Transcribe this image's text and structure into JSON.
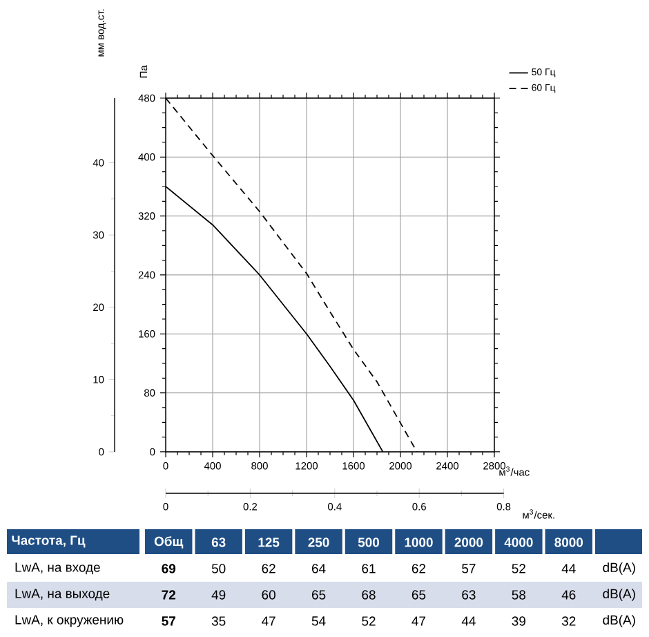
{
  "chart_data": [
    {
      "type": "line",
      "xlabel": "м$^{3}$/час",
      "ylabel": "Па",
      "y2label": "мм вод.ст.",
      "x2label": "м$^{3}$/сек.",
      "series": [
        {
          "name": "50 Гц",
          "color": "#000000",
          "line_style": "solid",
          "x": [
            0,
            400,
            800,
            1200,
            1400,
            1600,
            1850
          ],
          "values": [
            360,
            308,
            240,
            160,
            116,
            70,
            0
          ]
        },
        {
          "name": "60 Гц",
          "color": "#000000",
          "line_style": "dashed",
          "x": [
            0,
            400,
            800,
            1200,
            1400,
            1600,
            1800,
            2140
          ],
          "values": [
            480,
            402,
            326,
            242,
            190,
            139,
            95,
            0
          ]
        }
      ],
      "xlim": [
        0,
        2800
      ],
      "xticks": [
        0,
        400,
        800,
        1200,
        1600,
        2000,
        2400,
        2800
      ],
      "ylim": [
        0,
        480
      ],
      "yticks": [
        0,
        80,
        160,
        240,
        320,
        400,
        480
      ],
      "y2lim": [
        0,
        48.95
      ],
      "y2ticks": [
        0,
        10,
        20,
        30,
        40
      ],
      "x2lim": [
        0,
        0.8
      ],
      "x2ticks": [
        0,
        0.2,
        0.4,
        0.6,
        0.8
      ],
      "grid": true,
      "legend": "top right"
    },
    {
      "type": "heatmap",
      "ylabel": "Частота, Гц",
      "categories": [
        "Общ",
        "63",
        "125",
        "250",
        "500",
        "1000",
        "2000",
        "4000",
        "8000"
      ],
      "y_categories": [
        "LwA, на входе",
        "LwA, на выходе",
        "LwA, к окружению"
      ],
      "y2_categories": [
        "dB(A)",
        "dB(A)",
        "dB(A)"
      ],
      "cells": [
        [
          69,
          50,
          62,
          64,
          61,
          62,
          57,
          52,
          44
        ],
        [
          72,
          49,
          60,
          65,
          68,
          65,
          63,
          58,
          46
        ],
        [
          57,
          35,
          47,
          54,
          52,
          47,
          44,
          39,
          32
        ]
      ],
      "data_labels": true
    }
  ]
}
